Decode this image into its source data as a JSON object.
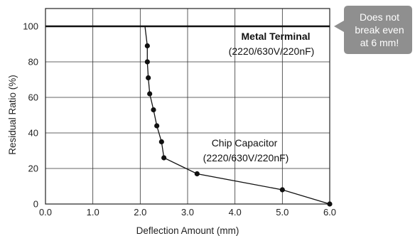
{
  "chart_data": {
    "type": "line",
    "xlabel": "Deflection Amount (mm)",
    "ylabel": "Residual Ratio (%)",
    "xlim": [
      0,
      6
    ],
    "ylim": [
      0,
      110
    ],
    "x_ticks": [
      0,
      1,
      2,
      3,
      4,
      5,
      6
    ],
    "x_tick_labels": [
      "0.0",
      "1.0",
      "2.0",
      "3.0",
      "4.0",
      "5.0",
      "6.0"
    ],
    "y_ticks": [
      0,
      20,
      40,
      60,
      80,
      100
    ],
    "y_tick_labels": [
      "0",
      "20",
      "40",
      "60",
      "80",
      "100"
    ],
    "grid": true,
    "series": [
      {
        "name": "Metal Terminal",
        "subtitle": "(2220/630V/220nF)",
        "color": "#111111",
        "x": [
          0,
          6
        ],
        "y": [
          100,
          100
        ]
      },
      {
        "name": "Chip Capacitor",
        "subtitle": "(2220/630V/220nF)",
        "color": "#111111",
        "x": [
          2.1,
          2.15,
          2.15,
          2.17,
          2.2,
          2.28,
          2.35,
          2.45,
          2.5,
          3.2,
          5.0,
          6.0
        ],
        "y": [
          100,
          89,
          80,
          71,
          62,
          53,
          44,
          35,
          26,
          17,
          8,
          0
        ],
        "markers": [
          [
            2.15,
            89
          ],
          [
            2.15,
            80
          ],
          [
            2.17,
            71
          ],
          [
            2.2,
            62
          ],
          [
            2.28,
            53
          ],
          [
            2.35,
            44
          ],
          [
            2.45,
            35
          ],
          [
            2.5,
            26
          ],
          [
            3.2,
            17
          ],
          [
            5.0,
            8
          ],
          [
            6.0,
            0
          ]
        ]
      }
    ],
    "callout": {
      "lines": [
        "Does not",
        "break even",
        "at 6 mm!"
      ],
      "color": "#8f8f8f"
    }
  }
}
